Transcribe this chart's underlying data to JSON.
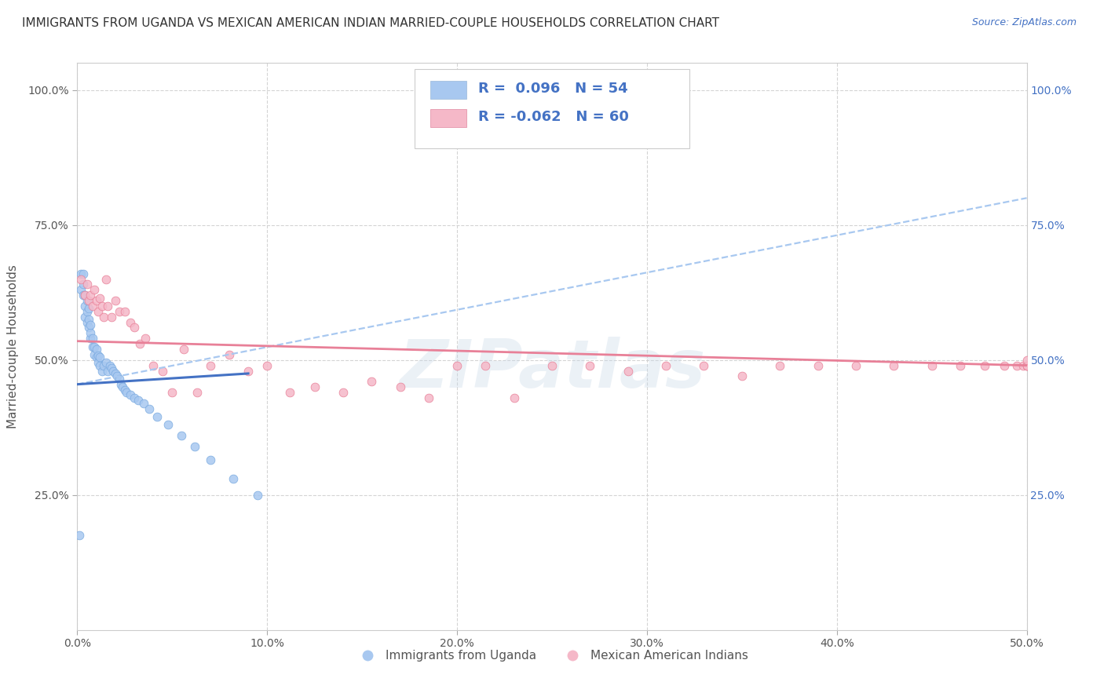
{
  "title": "IMMIGRANTS FROM UGANDA VS MEXICAN AMERICAN INDIAN MARRIED-COUPLE HOUSEHOLDS CORRELATION CHART",
  "source": "Source: ZipAtlas.com",
  "ylabel": "Married-couple Households",
  "xlim": [
    0.0,
    0.5
  ],
  "ylim": [
    0.0,
    1.05
  ],
  "xtick_labels": [
    "0.0%",
    "10.0%",
    "20.0%",
    "30.0%",
    "40.0%",
    "50.0%"
  ],
  "xtick_vals": [
    0.0,
    0.1,
    0.2,
    0.3,
    0.4,
    0.5
  ],
  "ytick_vals": [
    0.25,
    0.5,
    0.75,
    1.0
  ],
  "ytick_labels_left": [
    "25.0%",
    "50.0%",
    "75.0%",
    "100.0%"
  ],
  "ytick_labels_right": [
    "25.0%",
    "50.0%",
    "75.0%",
    "100.0%"
  ],
  "blue_R": "0.096",
  "blue_N": "54",
  "pink_R": "-0.062",
  "pink_N": "60",
  "blue_color": "#a8c8f0",
  "pink_color": "#f5b8c8",
  "blue_line_color": "#4472c4",
  "dashed_line_color": "#a8c8f0",
  "watermark_text": "ZIPatlas",
  "legend_label_blue": "Immigrants from Uganda",
  "legend_label_pink": "Mexican American Indians",
  "blue_scatter_x": [
    0.001,
    0.002,
    0.002,
    0.003,
    0.003,
    0.003,
    0.004,
    0.004,
    0.004,
    0.005,
    0.005,
    0.005,
    0.006,
    0.006,
    0.006,
    0.007,
    0.007,
    0.007,
    0.008,
    0.008,
    0.009,
    0.009,
    0.01,
    0.01,
    0.011,
    0.011,
    0.012,
    0.012,
    0.013,
    0.014,
    0.015,
    0.016,
    0.017,
    0.018,
    0.019,
    0.02,
    0.021,
    0.022,
    0.023,
    0.024,
    0.025,
    0.026,
    0.028,
    0.03,
    0.032,
    0.035,
    0.038,
    0.042,
    0.048,
    0.055,
    0.062,
    0.07,
    0.082,
    0.095
  ],
  "blue_scatter_y": [
    0.175,
    0.63,
    0.66,
    0.62,
    0.64,
    0.66,
    0.58,
    0.6,
    0.62,
    0.57,
    0.59,
    0.61,
    0.56,
    0.575,
    0.595,
    0.54,
    0.55,
    0.565,
    0.525,
    0.54,
    0.51,
    0.525,
    0.505,
    0.52,
    0.495,
    0.508,
    0.49,
    0.505,
    0.48,
    0.49,
    0.495,
    0.48,
    0.49,
    0.485,
    0.48,
    0.475,
    0.47,
    0.465,
    0.455,
    0.45,
    0.445,
    0.44,
    0.435,
    0.43,
    0.425,
    0.42,
    0.41,
    0.395,
    0.38,
    0.36,
    0.34,
    0.315,
    0.28,
    0.25
  ],
  "pink_scatter_x": [
    0.002,
    0.004,
    0.005,
    0.006,
    0.007,
    0.008,
    0.009,
    0.01,
    0.011,
    0.012,
    0.013,
    0.014,
    0.015,
    0.016,
    0.018,
    0.02,
    0.022,
    0.025,
    0.028,
    0.03,
    0.033,
    0.036,
    0.04,
    0.045,
    0.05,
    0.056,
    0.063,
    0.07,
    0.08,
    0.09,
    0.1,
    0.112,
    0.125,
    0.14,
    0.155,
    0.17,
    0.185,
    0.2,
    0.215,
    0.23,
    0.25,
    0.27,
    0.29,
    0.31,
    0.33,
    0.35,
    0.37,
    0.39,
    0.41,
    0.43,
    0.45,
    0.465,
    0.478,
    0.488,
    0.495,
    0.498,
    0.5,
    0.5,
    0.5,
    0.5
  ],
  "pink_scatter_y": [
    0.65,
    0.62,
    0.64,
    0.61,
    0.62,
    0.6,
    0.63,
    0.61,
    0.59,
    0.615,
    0.6,
    0.58,
    0.65,
    0.6,
    0.58,
    0.61,
    0.59,
    0.59,
    0.57,
    0.56,
    0.53,
    0.54,
    0.49,
    0.48,
    0.44,
    0.52,
    0.44,
    0.49,
    0.51,
    0.48,
    0.49,
    0.44,
    0.45,
    0.44,
    0.46,
    0.45,
    0.43,
    0.49,
    0.49,
    0.43,
    0.49,
    0.49,
    0.48,
    0.49,
    0.49,
    0.47,
    0.49,
    0.49,
    0.49,
    0.49,
    0.49,
    0.49,
    0.49,
    0.49,
    0.49,
    0.49,
    0.49,
    0.49,
    0.49,
    0.5
  ],
  "blue_trendline_x": [
    0.0,
    0.5
  ],
  "blue_trendline_y": [
    0.455,
    0.8
  ],
  "pink_trendline_x": [
    0.0,
    0.5
  ],
  "pink_trendline_y": [
    0.535,
    0.49
  ],
  "background_color": "#ffffff",
  "grid_color": "#d0d0d0",
  "title_color": "#333333",
  "title_fontsize": 11.0,
  "source_color": "#4472c4",
  "axis_label_color": "#555555",
  "right_tick_color": "#4472c4"
}
